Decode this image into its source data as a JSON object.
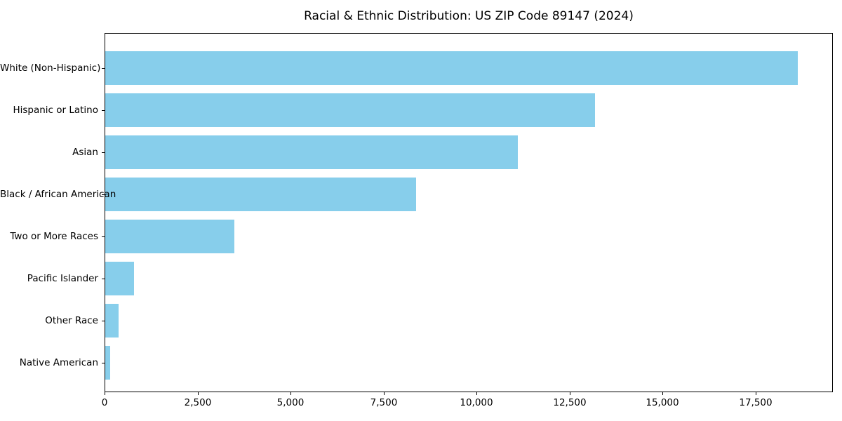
{
  "figure": {
    "background_color": "#ffffff",
    "text_color": "#000000",
    "spine_color": "#000000"
  },
  "chart_data": {
    "type": "bar",
    "orientation": "horizontal",
    "title": "Racial & Ethnic Distribution: US ZIP Code 89147 (2024)",
    "xlabel": "",
    "ylabel": "",
    "categories": [
      "White (Non-Hispanic)",
      "Hispanic or Latino",
      "Asian",
      "Black / African American",
      "Two or More Races",
      "Pacific Islander",
      "Other Race",
      "Native American"
    ],
    "values": [
      18620,
      13160,
      11090,
      8350,
      3470,
      770,
      360,
      130
    ],
    "bar_color": "#87CEEB",
    "xlim": [
      0,
      19575
    ],
    "x_ticks": [
      0,
      2500,
      5000,
      7500,
      10000,
      12500,
      15000,
      17500
    ],
    "x_tick_labels": [
      "0",
      "2,500",
      "5,000",
      "7,500",
      "10,000",
      "12,500",
      "15,000",
      "17,500"
    ],
    "grid": false,
    "legend": null
  }
}
